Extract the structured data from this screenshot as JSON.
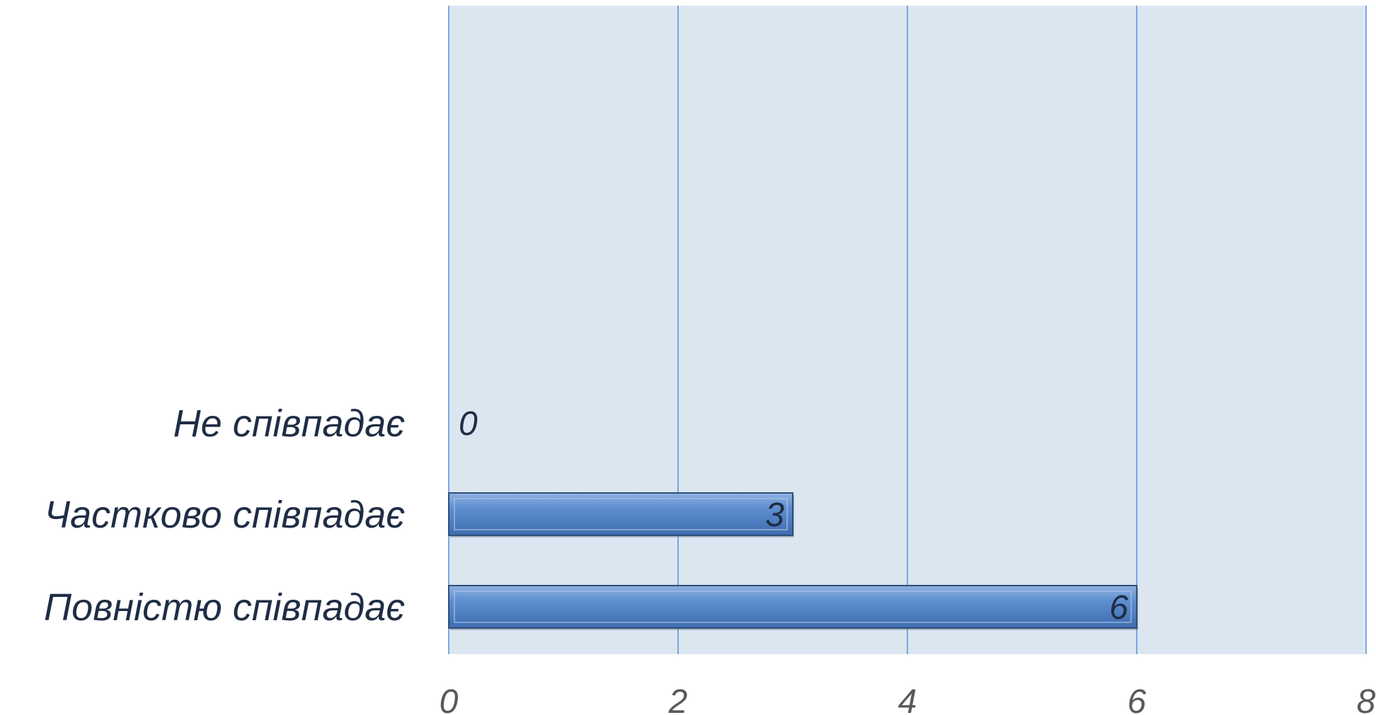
{
  "chart_data": {
    "type": "bar",
    "orientation": "horizontal",
    "title": "",
    "xlabel": "",
    "ylabel": "",
    "categories": [
      "Не співпадає",
      "Частково співпадає",
      "Повністю співпадає"
    ],
    "values": [
      0,
      3,
      6
    ],
    "data_labels": [
      "0",
      "3",
      "6"
    ],
    "xlim": [
      0,
      8
    ],
    "ticks": [
      0,
      2,
      4,
      6,
      8
    ],
    "tick_labels": [
      "0",
      "2",
      "4",
      "6",
      "8"
    ],
    "grid": "vertical",
    "legend": "none",
    "colors": {
      "plot_background": "#dce6f1",
      "gridline": "#5b8fd6",
      "bar_fill": "#5a8bcb",
      "bar_border": "#2f4f7a"
    }
  }
}
